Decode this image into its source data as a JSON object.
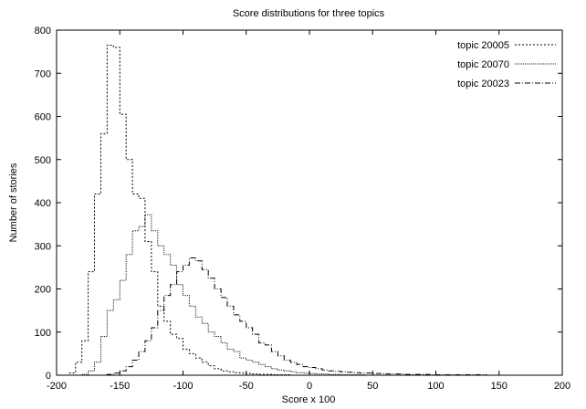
{
  "chart_data": {
    "type": "line",
    "title": "Score distributions for three topics",
    "xlabel": "Score x 100",
    "ylabel": "Number of stories",
    "xlim": [
      -200,
      200
    ],
    "ylim": [
      0,
      800
    ],
    "xticks": [
      -200,
      -150,
      -100,
      -50,
      0,
      50,
      100,
      150,
      200
    ],
    "yticks": [
      0,
      100,
      200,
      300,
      400,
      500,
      600,
      700,
      800
    ],
    "grid": false,
    "legend_position": "top-right",
    "series": [
      {
        "name": "topic 20005",
        "style": "dotted",
        "x": [
          -200,
          -195,
          -190,
          -185,
          -180,
          -175,
          -170,
          -165,
          -160,
          -155,
          -150,
          -145,
          -140,
          -135,
          -130,
          -125,
          -120,
          -115,
          -110,
          -105,
          -100,
          -95,
          -90,
          -85,
          -80,
          -75,
          -70,
          -65,
          -60,
          -55,
          -50,
          -45,
          -40,
          -35,
          -30,
          -25,
          -20,
          -15,
          -10,
          -5,
          0,
          5,
          10,
          15,
          20,
          25,
          30,
          35,
          40,
          45,
          50,
          55,
          60,
          65,
          70,
          75,
          80,
          85,
          90,
          95,
          100,
          105,
          110,
          115,
          120,
          125,
          130,
          135,
          140,
          145,
          150,
          155,
          160,
          165,
          170,
          175,
          180,
          185,
          190,
          195,
          200
        ],
        "y": [
          0,
          0,
          5,
          30,
          80,
          240,
          420,
          560,
          765,
          760,
          605,
          500,
          420,
          410,
          310,
          240,
          160,
          125,
          95,
          85,
          60,
          50,
          40,
          30,
          22,
          15,
          10,
          8,
          6,
          5,
          4,
          3,
          2,
          2,
          1,
          1,
          1,
          0,
          0,
          0,
          0,
          0,
          0,
          0,
          0,
          0,
          0,
          0,
          0,
          0,
          0,
          0,
          0,
          0,
          0,
          0,
          0,
          0,
          0,
          0,
          0,
          0,
          0,
          0,
          0,
          0,
          0,
          0,
          0,
          0,
          0,
          0,
          0,
          0,
          0,
          0,
          0,
          0,
          0,
          0,
          0
        ]
      },
      {
        "name": "topic 20070",
        "style": "fine-dotted",
        "x": [
          -200,
          -195,
          -190,
          -185,
          -180,
          -175,
          -170,
          -165,
          -160,
          -155,
          -150,
          -145,
          -140,
          -135,
          -130,
          -125,
          -120,
          -115,
          -110,
          -105,
          -100,
          -95,
          -90,
          -85,
          -80,
          -75,
          -70,
          -65,
          -60,
          -55,
          -50,
          -45,
          -40,
          -35,
          -30,
          -25,
          -20,
          -15,
          -10,
          -5,
          0,
          5,
          10,
          15,
          20,
          25,
          30,
          35,
          40,
          45,
          50,
          55,
          60,
          65,
          70,
          75,
          80,
          85,
          90,
          95,
          100,
          105,
          110,
          115,
          120,
          125,
          130,
          135,
          140,
          145,
          150,
          155,
          160,
          165,
          170,
          175,
          180,
          185,
          190,
          195,
          200
        ],
        "y": [
          0,
          0,
          0,
          0,
          2,
          10,
          30,
          90,
          150,
          175,
          220,
          280,
          335,
          345,
          372,
          335,
          300,
          280,
          255,
          210,
          185,
          160,
          135,
          120,
          100,
          90,
          75,
          60,
          55,
          40,
          35,
          30,
          25,
          20,
          15,
          12,
          10,
          8,
          6,
          5,
          4,
          3,
          3,
          2,
          2,
          1,
          1,
          1,
          1,
          0,
          0,
          0,
          0,
          0,
          0,
          0,
          0,
          0,
          0,
          0,
          0,
          0,
          0,
          0,
          0,
          0,
          0,
          0,
          0,
          0,
          0,
          0,
          0,
          0,
          0,
          0,
          0,
          0,
          0,
          0,
          0
        ]
      },
      {
        "name": "topic 20023",
        "style": "dash-dot",
        "x": [
          -200,
          -195,
          -190,
          -185,
          -180,
          -175,
          -170,
          -165,
          -160,
          -155,
          -150,
          -145,
          -140,
          -135,
          -130,
          -125,
          -120,
          -115,
          -110,
          -105,
          -100,
          -95,
          -90,
          -85,
          -80,
          -75,
          -70,
          -65,
          -60,
          -55,
          -50,
          -45,
          -40,
          -35,
          -30,
          -25,
          -20,
          -15,
          -10,
          -5,
          0,
          5,
          10,
          15,
          20,
          25,
          30,
          35,
          40,
          45,
          50,
          55,
          60,
          65,
          70,
          75,
          80,
          85,
          90,
          95,
          100,
          105,
          110,
          115,
          120,
          125,
          130,
          135,
          140,
          145,
          150,
          155,
          160,
          165,
          170,
          175,
          180,
          185,
          190,
          195,
          200
        ],
        "y": [
          0,
          0,
          0,
          0,
          0,
          0,
          0,
          0,
          2,
          5,
          10,
          20,
          35,
          55,
          80,
          110,
          150,
          185,
          210,
          240,
          255,
          272,
          265,
          245,
          225,
          200,
          180,
          160,
          140,
          125,
          110,
          95,
          75,
          70,
          55,
          45,
          35,
          30,
          25,
          20,
          18,
          15,
          12,
          10,
          9,
          8,
          7,
          6,
          5,
          5,
          4,
          4,
          3,
          3,
          3,
          2,
          2,
          2,
          2,
          1,
          1,
          1,
          1,
          1,
          1,
          1,
          1,
          1,
          0,
          0,
          0,
          0,
          0,
          0,
          0,
          0,
          0,
          0,
          0,
          0,
          0
        ]
      }
    ]
  }
}
